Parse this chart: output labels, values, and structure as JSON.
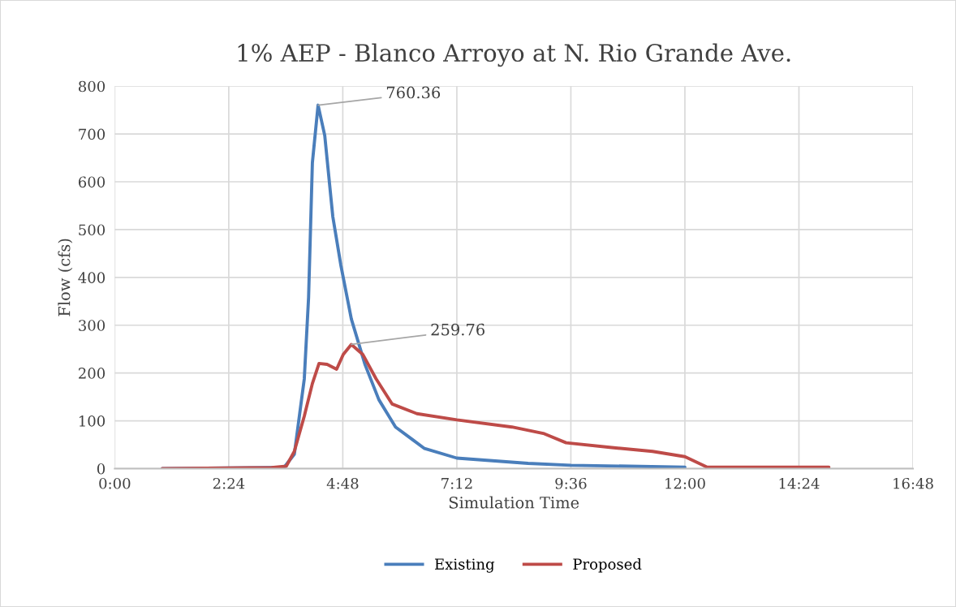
{
  "chart_data": {
    "type": "line",
    "title": "1% AEP - Blanco Arroyo at N. Rio Grande Ave.",
    "xlabel": "Simulation Time",
    "ylabel": "Flow (cfs)",
    "xlim": [
      0,
      16.8
    ],
    "xticks": [
      {
        "value": 0,
        "label": "0:00"
      },
      {
        "value": 2.4,
        "label": "2:24"
      },
      {
        "value": 4.8,
        "label": "4:48"
      },
      {
        "value": 7.2,
        "label": "7:12"
      },
      {
        "value": 9.6,
        "label": "9:36"
      },
      {
        "value": 12.0,
        "label": "12:00"
      },
      {
        "value": 14.4,
        "label": "14:24"
      },
      {
        "value": 16.8,
        "label": "16:48"
      }
    ],
    "ylim": [
      0,
      800
    ],
    "yticks": [
      0,
      100,
      200,
      300,
      400,
      500,
      600,
      700,
      800
    ],
    "grid": true,
    "legend": "bottom",
    "marker": "none",
    "line_style": "solid",
    "annotations": [
      {
        "text": "760.36",
        "x": 4.28,
        "y": 760.36
      },
      {
        "text": "259.76",
        "x": 4.98,
        "y": 259.76
      }
    ],
    "series": [
      {
        "name": "Existing",
        "color": "#4a7ebb",
        "x": [
          1.0,
          3.3,
          3.56,
          3.78,
          3.99,
          4.08,
          4.16,
          4.28,
          4.42,
          4.59,
          4.76,
          4.98,
          5.27,
          5.56,
          5.91,
          6.52,
          7.2,
          8.7,
          9.6,
          12.0
        ],
        "values": [
          0,
          2,
          2,
          30,
          188,
          358,
          640,
          760.36,
          697,
          527,
          425,
          313,
          217,
          144,
          87,
          42,
          22,
          11,
          7,
          3
        ]
      },
      {
        "name": "Proposed",
        "color": "#be4b48",
        "x": [
          1.0,
          3.3,
          3.61,
          3.78,
          3.99,
          4.16,
          4.3,
          4.47,
          4.67,
          4.81,
          4.98,
          5.22,
          5.5,
          5.84,
          6.36,
          7.2,
          8.36,
          9.04,
          9.5,
          10.46,
          11.32,
          12.0,
          12.47,
          15.03
        ],
        "values": [
          0,
          2,
          5,
          36,
          110,
          178,
          220,
          218,
          208,
          239,
          259.76,
          239,
          188,
          135,
          115,
          102,
          87,
          73,
          54,
          44,
          36,
          25,
          3,
          3
        ]
      }
    ]
  }
}
